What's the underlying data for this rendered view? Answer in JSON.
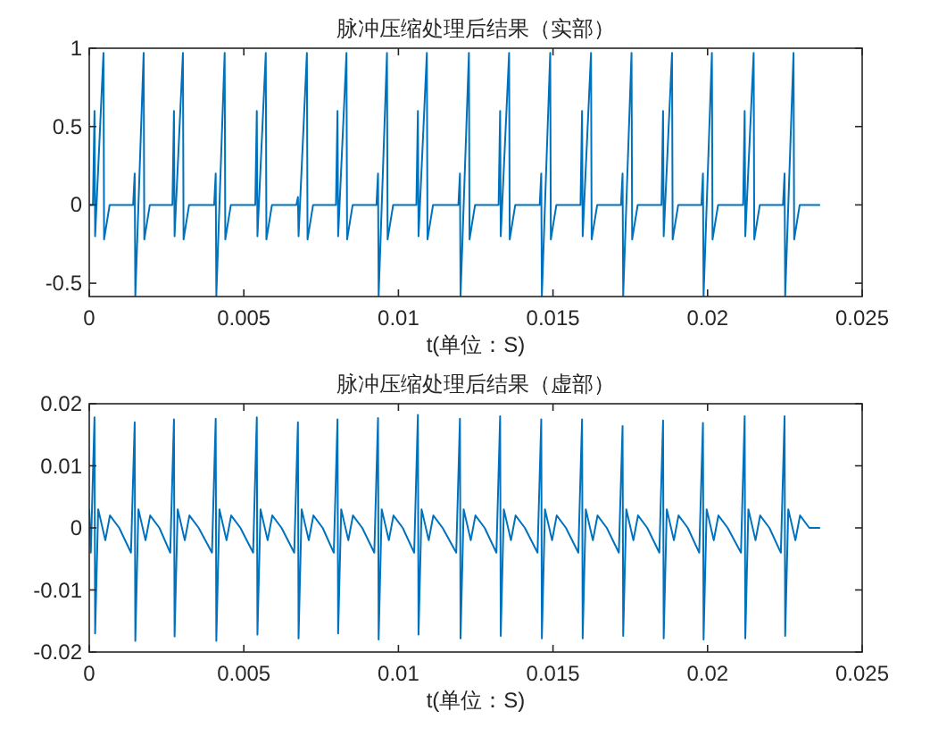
{
  "chart_data": [
    {
      "type": "line",
      "title": "脉冲压缩处理后结果（实部）",
      "xlabel": "t(单位：S)",
      "color": "#0072bd",
      "xlim": [
        0,
        0.025
      ],
      "ylim": [
        -0.585,
        1
      ],
      "xticks": [
        0,
        0.005,
        0.01,
        0.015,
        0.02,
        0.025
      ],
      "yticks": [
        -0.5,
        0,
        0.5,
        1
      ],
      "x": [
        0,
        0.00012,
        0.00017,
        0.00019,
        0.00046,
        0.00048,
        0.00066,
        0.00142,
        0.00147,
        0.00149,
        0.00176,
        0.00178,
        0.00196,
        0.00269,
        0.00274,
        0.00276,
        0.00303,
        0.00305,
        0.00323,
        0.00404,
        0.00409,
        0.00411,
        0.00438,
        0.0044,
        0.00458,
        0.00537,
        0.00542,
        0.00544,
        0.00571,
        0.00573,
        0.00591,
        0.0067,
        0.00675,
        0.00677,
        0.00704,
        0.00706,
        0.00724,
        0.00798,
        0.00803,
        0.00805,
        0.00832,
        0.00834,
        0.00852,
        0.00929,
        0.00934,
        0.00936,
        0.00963,
        0.00965,
        0.00983,
        0.01058,
        0.01063,
        0.01065,
        0.01092,
        0.01094,
        0.01112,
        0.01194,
        0.01199,
        0.01201,
        0.01228,
        0.0123,
        0.01248,
        0.01324,
        0.01329,
        0.01331,
        0.01358,
        0.0136,
        0.01378,
        0.01457,
        0.01462,
        0.01464,
        0.01491,
        0.01493,
        0.01511,
        0.01589,
        0.01594,
        0.01596,
        0.01623,
        0.01625,
        0.01643,
        0.0172,
        0.01725,
        0.01727,
        0.01754,
        0.01756,
        0.01774,
        0.01851,
        0.01856,
        0.01858,
        0.01885,
        0.01887,
        0.01905,
        0.0198,
        0.01985,
        0.01987,
        0.02014,
        0.02016,
        0.02034,
        0.02115,
        0.0212,
        0.02122,
        0.02149,
        0.02151,
        0.02169,
        0.02244,
        0.02249,
        0.02251,
        0.02278,
        0.0228,
        0.02298,
        0.02364
      ],
      "values": [
        0,
        0,
        0.6,
        -0.2,
        0.97,
        -0.22,
        0,
        0,
        0.2,
        -0.58,
        0.97,
        -0.22,
        0,
        0,
        0.6,
        -0.2,
        0.97,
        -0.22,
        0,
        0,
        0.2,
        -0.58,
        0.97,
        -0.22,
        0,
        0,
        0.6,
        -0.2,
        0.97,
        -0.22,
        0,
        0,
        0.05,
        -0.2,
        0.97,
        -0.22,
        0,
        0,
        0.6,
        -0.2,
        0.97,
        -0.22,
        0,
        0,
        0.2,
        -0.58,
        0.97,
        -0.22,
        0,
        0,
        0.6,
        -0.2,
        0.97,
        -0.22,
        0,
        0,
        0.2,
        -0.58,
        0.97,
        -0.22,
        0,
        0,
        0.6,
        -0.2,
        0.97,
        -0.22,
        0,
        0,
        0.2,
        -0.58,
        0.97,
        -0.22,
        0,
        0,
        0.6,
        -0.2,
        0.97,
        -0.22,
        0,
        0,
        0.2,
        -0.58,
        0.97,
        -0.22,
        0,
        0,
        0.6,
        -0.2,
        0.97,
        -0.22,
        0,
        0,
        0.2,
        -0.58,
        0.97,
        -0.22,
        0,
        0,
        0.6,
        -0.2,
        0.97,
        -0.22,
        0,
        0,
        0.2,
        -0.58,
        0.97,
        -0.22,
        0,
        0
      ]
    },
    {
      "type": "line",
      "title": "脉冲压缩处理后结果（虚部）",
      "xlabel": "t(单位：S)",
      "color": "#0072bd",
      "xlim": [
        0,
        0.025
      ],
      "ylim": [
        -0.02,
        0.02
      ],
      "xticks": [
        0,
        0.005,
        0.01,
        0.015,
        0.02,
        0.025
      ],
      "yticks": [
        -0.02,
        -0.01,
        0,
        0.01,
        0.02
      ],
      "x": [
        0,
        5e-05,
        0.00017,
        0.00019,
        0.00029,
        0.00052,
        0.00067,
        0.00097,
        0.00135,
        0.00147,
        0.00149,
        0.00159,
        0.00182,
        0.00197,
        0.00227,
        0.00262,
        0.00274,
        0.00276,
        0.00286,
        0.00309,
        0.00324,
        0.00354,
        0.00397,
        0.00409,
        0.00411,
        0.00421,
        0.00444,
        0.00459,
        0.00489,
        0.0053,
        0.00542,
        0.00544,
        0.00554,
        0.00577,
        0.00592,
        0.00622,
        0.00663,
        0.00675,
        0.00677,
        0.00687,
        0.0071,
        0.00725,
        0.00755,
        0.00791,
        0.00803,
        0.00805,
        0.00815,
        0.00838,
        0.00853,
        0.00883,
        0.00922,
        0.00934,
        0.00936,
        0.00946,
        0.00969,
        0.00984,
        0.01014,
        0.01051,
        0.01063,
        0.01065,
        0.01075,
        0.01098,
        0.01113,
        0.01143,
        0.01187,
        0.01199,
        0.01201,
        0.01211,
        0.01234,
        0.01249,
        0.01279,
        0.01317,
        0.01329,
        0.01331,
        0.01341,
        0.01364,
        0.01379,
        0.01409,
        0.0145,
        0.01462,
        0.01464,
        0.01474,
        0.01497,
        0.01512,
        0.01542,
        0.01582,
        0.01594,
        0.01596,
        0.01606,
        0.01629,
        0.01644,
        0.01674,
        0.01713,
        0.01725,
        0.01727,
        0.01737,
        0.0176,
        0.01775,
        0.01805,
        0.01844,
        0.01856,
        0.01858,
        0.01868,
        0.01891,
        0.01906,
        0.01936,
        0.01973,
        0.01985,
        0.01987,
        0.01997,
        0.0202,
        0.02035,
        0.02065,
        0.02108,
        0.0212,
        0.02122,
        0.02132,
        0.02155,
        0.0217,
        0.022,
        0.02237,
        0.02249,
        0.02251,
        0.02261,
        0.02284,
        0.02299,
        0.02329,
        0.02364
      ],
      "values": [
        0.003,
        -0.004,
        0.0178,
        -0.017,
        0.003,
        -0.002,
        0.002,
        0,
        -0.004,
        0.017,
        -0.0182,
        0.003,
        -0.002,
        0.002,
        0,
        -0.004,
        0.0175,
        -0.0175,
        0.003,
        -0.002,
        0.002,
        0,
        -0.004,
        0.0176,
        -0.0182,
        0.003,
        -0.002,
        0.002,
        0,
        -0.004,
        0.0178,
        -0.0172,
        0.003,
        -0.002,
        0.002,
        0,
        -0.004,
        0.017,
        -0.0178,
        0.003,
        -0.002,
        0.002,
        0,
        -0.004,
        0.0175,
        -0.017,
        0.003,
        -0.002,
        0.002,
        0,
        -0.004,
        0.0177,
        -0.018,
        0.003,
        -0.002,
        0.002,
        0,
        -0.004,
        0.0182,
        -0.0172,
        0.003,
        -0.002,
        0.002,
        0,
        -0.004,
        0.0176,
        -0.0178,
        0.003,
        -0.002,
        0.002,
        0,
        -0.004,
        0.018,
        -0.0174,
        0.003,
        -0.002,
        0.002,
        0,
        -0.004,
        0.0175,
        -0.0178,
        0.003,
        -0.002,
        0.002,
        0,
        -0.004,
        0.0175,
        -0.0178,
        0.003,
        -0.002,
        0.002,
        0,
        -0.004,
        0.0164,
        -0.0174,
        0.003,
        -0.002,
        0.002,
        0,
        -0.004,
        0.0173,
        -0.0178,
        0.003,
        -0.002,
        0.002,
        0,
        -0.004,
        0.0169,
        -0.018,
        0.003,
        -0.002,
        0.002,
        0,
        -0.004,
        0.018,
        -0.0178,
        0.003,
        -0.002,
        0.002,
        0,
        -0.004,
        0.018,
        -0.0174,
        0.003,
        -0.002,
        0.002,
        0,
        0
      ]
    }
  ]
}
